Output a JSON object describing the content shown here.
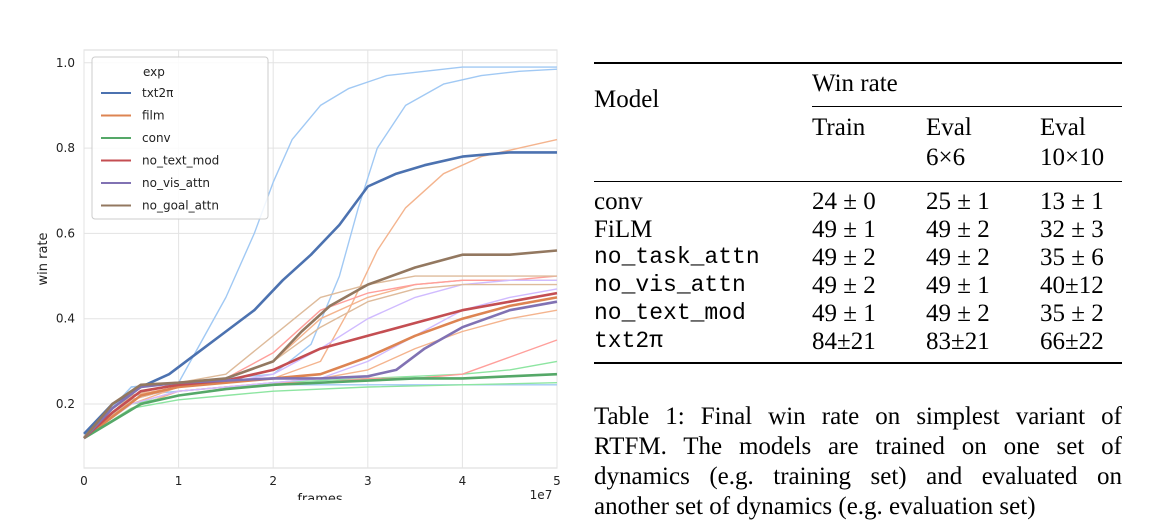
{
  "chart_data": {
    "type": "line",
    "xlabel": "frames",
    "x_scale_label": "1e7",
    "ylabel": "win rate",
    "xlim": [
      0,
      5
    ],
    "ylim": [
      0.05,
      1.03
    ],
    "x_ticks": [
      "0",
      "1",
      "2",
      "3",
      "4",
      "5"
    ],
    "y_ticks": [
      "0.2",
      "0.4",
      "0.6",
      "0.8",
      "1.0"
    ],
    "grid": true,
    "legend": {
      "placement": "top-left",
      "title": "exp",
      "entries": [
        {
          "name": "txt2π",
          "color": "#4c72b0"
        },
        {
          "name": "film",
          "color": "#dd8452"
        },
        {
          "name": "conv",
          "color": "#55a868"
        },
        {
          "name": "no_text_mod",
          "color": "#c44e52"
        },
        {
          "name": "no_vis_attn",
          "color": "#8172b3"
        },
        {
          "name": "no_goal_attn",
          "color": "#937860"
        }
      ]
    },
    "series": [
      {
        "name": "txt2π",
        "color": "#4c72b0",
        "x": [
          0,
          0.3,
          0.6,
          0.9,
          1.2,
          1.5,
          1.8,
          2.1,
          2.4,
          2.7,
          3.0,
          3.3,
          3.6,
          4.0,
          4.5,
          5.0
        ],
        "y": [
          0.13,
          0.2,
          0.24,
          0.27,
          0.32,
          0.37,
          0.42,
          0.49,
          0.55,
          0.62,
          0.71,
          0.74,
          0.76,
          0.78,
          0.79,
          0.79
        ]
      },
      {
        "name": "film",
        "color": "#dd8452",
        "x": [
          0,
          0.3,
          0.6,
          1.0,
          1.5,
          2.0,
          2.5,
          3.0,
          3.5,
          4.0,
          4.5,
          5.0
        ],
        "y": [
          0.12,
          0.17,
          0.22,
          0.24,
          0.25,
          0.26,
          0.27,
          0.31,
          0.36,
          0.4,
          0.43,
          0.45
        ]
      },
      {
        "name": "conv",
        "color": "#55a868",
        "x": [
          0,
          0.3,
          0.6,
          1.0,
          1.5,
          2.0,
          2.5,
          3.0,
          3.5,
          4.0,
          4.5,
          5.0
        ],
        "y": [
          0.12,
          0.16,
          0.2,
          0.22,
          0.235,
          0.245,
          0.25,
          0.255,
          0.26,
          0.26,
          0.265,
          0.27
        ]
      },
      {
        "name": "no_text_mod",
        "color": "#c44e52",
        "x": [
          0,
          0.3,
          0.6,
          1.0,
          1.5,
          2.0,
          2.5,
          3.0,
          3.5,
          4.0,
          4.5,
          5.0
        ],
        "y": [
          0.12,
          0.18,
          0.23,
          0.245,
          0.255,
          0.28,
          0.33,
          0.36,
          0.39,
          0.42,
          0.44,
          0.46
        ]
      },
      {
        "name": "no_vis_attn",
        "color": "#8172b3",
        "x": [
          0,
          0.3,
          0.6,
          1.0,
          1.5,
          2.0,
          2.5,
          3.0,
          3.3,
          3.6,
          4.0,
          4.5,
          5.0
        ],
        "y": [
          0.12,
          0.19,
          0.24,
          0.25,
          0.255,
          0.26,
          0.26,
          0.265,
          0.28,
          0.33,
          0.38,
          0.42,
          0.44
        ]
      },
      {
        "name": "no_goal_attn",
        "color": "#937860",
        "x": [
          0,
          0.3,
          0.6,
          1.0,
          1.5,
          2.0,
          2.3,
          2.6,
          3.0,
          3.5,
          4.0,
          4.5,
          5.0
        ],
        "y": [
          0.12,
          0.2,
          0.245,
          0.25,
          0.26,
          0.3,
          0.37,
          0.43,
          0.48,
          0.52,
          0.55,
          0.55,
          0.56
        ]
      }
    ],
    "faint_runs": [
      {
        "color": "#a1c9f4",
        "x": [
          0,
          0.5,
          1.0,
          1.2,
          1.5,
          1.8,
          2.0,
          2.2,
          2.5,
          2.8,
          3.2,
          3.6,
          4.0,
          4.5,
          5.0
        ],
        "y": [
          0.12,
          0.24,
          0.25,
          0.33,
          0.45,
          0.6,
          0.72,
          0.82,
          0.9,
          0.94,
          0.97,
          0.98,
          0.99,
          0.99,
          0.99
        ]
      },
      {
        "color": "#a1c9f4",
        "x": [
          0,
          0.5,
          1.0,
          1.5,
          2.0,
          2.4,
          2.7,
          2.9,
          3.1,
          3.4,
          3.8,
          4.2,
          4.6,
          5.0
        ],
        "y": [
          0.12,
          0.24,
          0.25,
          0.26,
          0.27,
          0.34,
          0.5,
          0.66,
          0.8,
          0.9,
          0.95,
          0.97,
          0.98,
          0.985
        ]
      },
      {
        "color": "#a1c9f4",
        "x": [
          0,
          0.5,
          1.0,
          1.5,
          2.0,
          3.0,
          4.0,
          5.0
        ],
        "y": [
          0.12,
          0.22,
          0.23,
          0.24,
          0.245,
          0.245,
          0.245,
          0.245
        ]
      },
      {
        "color": "#f4b48e",
        "x": [
          0,
          0.5,
          1.0,
          1.5,
          2.0,
          2.5,
          2.8,
          3.1,
          3.4,
          3.8,
          4.2,
          4.6,
          5.0
        ],
        "y": [
          0.12,
          0.22,
          0.24,
          0.25,
          0.26,
          0.3,
          0.42,
          0.56,
          0.66,
          0.74,
          0.78,
          0.8,
          0.82
        ]
      },
      {
        "color": "#f4b48e",
        "x": [
          0,
          0.5,
          1.0,
          1.5,
          2.0,
          2.5,
          3.0,
          3.5,
          4.0,
          4.5,
          5.0
        ],
        "y": [
          0.12,
          0.2,
          0.24,
          0.26,
          0.3,
          0.4,
          0.45,
          0.48,
          0.49,
          0.49,
          0.49
        ]
      },
      {
        "color": "#f4b48e",
        "x": [
          0,
          0.5,
          1.0,
          1.5,
          2.0,
          2.5,
          3.0,
          3.5,
          4.0,
          4.5,
          5.0
        ],
        "y": [
          0.12,
          0.19,
          0.23,
          0.24,
          0.25,
          0.26,
          0.28,
          0.33,
          0.37,
          0.4,
          0.42
        ]
      },
      {
        "color": "#8de5a1",
        "x": [
          0,
          0.5,
          1.0,
          1.5,
          2.0,
          3.0,
          4.0,
          4.5,
          5.0
        ],
        "y": [
          0.12,
          0.2,
          0.22,
          0.235,
          0.25,
          0.26,
          0.27,
          0.28,
          0.3
        ]
      },
      {
        "color": "#8de5a1",
        "x": [
          0,
          0.5,
          1.0,
          1.5,
          2.0,
          3.0,
          4.0,
          5.0
        ],
        "y": [
          0.12,
          0.19,
          0.21,
          0.22,
          0.23,
          0.24,
          0.245,
          0.25
        ]
      },
      {
        "color": "#ff9f9b",
        "x": [
          0,
          0.5,
          1.0,
          1.5,
          2.0,
          2.5,
          3.0,
          3.5,
          4.0,
          4.5,
          5.0
        ],
        "y": [
          0.12,
          0.21,
          0.24,
          0.26,
          0.32,
          0.42,
          0.46,
          0.48,
          0.49,
          0.49,
          0.5
        ]
      },
      {
        "color": "#ff9f9b",
        "x": [
          0,
          0.5,
          1.0,
          1.5,
          2.0,
          2.5,
          3.0,
          3.5,
          4.0,
          4.5,
          5.0
        ],
        "y": [
          0.12,
          0.2,
          0.23,
          0.24,
          0.25,
          0.25,
          0.26,
          0.26,
          0.27,
          0.31,
          0.35
        ]
      },
      {
        "color": "#d0bbff",
        "x": [
          0,
          0.5,
          1.0,
          1.5,
          2.0,
          2.5,
          3.0,
          3.5,
          4.0,
          4.5,
          5.0
        ],
        "y": [
          0.12,
          0.21,
          0.24,
          0.25,
          0.27,
          0.33,
          0.4,
          0.45,
          0.48,
          0.49,
          0.49
        ]
      },
      {
        "color": "#d0bbff",
        "x": [
          0,
          0.5,
          1.0,
          1.5,
          2.0,
          2.5,
          3.0,
          3.5,
          4.0,
          4.5,
          5.0
        ],
        "y": [
          0.12,
          0.2,
          0.23,
          0.24,
          0.25,
          0.26,
          0.3,
          0.36,
          0.42,
          0.45,
          0.47
        ]
      },
      {
        "color": "#debb9b",
        "x": [
          0,
          0.5,
          1.0,
          1.5,
          2.0,
          2.5,
          3.0,
          3.5,
          4.0,
          4.5,
          5.0
        ],
        "y": [
          0.12,
          0.22,
          0.25,
          0.27,
          0.36,
          0.45,
          0.48,
          0.5,
          0.5,
          0.5,
          0.5
        ]
      },
      {
        "color": "#debb9b",
        "x": [
          0,
          0.5,
          1.0,
          1.5,
          2.0,
          2.5,
          3.0,
          3.5,
          4.0,
          4.5,
          5.0
        ],
        "y": [
          0.12,
          0.21,
          0.24,
          0.26,
          0.3,
          0.38,
          0.44,
          0.47,
          0.48,
          0.48,
          0.48
        ]
      }
    ]
  },
  "table": {
    "col_model": "Model",
    "group_header": "Win rate",
    "sub_headers": [
      {
        "line1": "Train",
        "line2": ""
      },
      {
        "line1": "Eval",
        "line2": "6×6"
      },
      {
        "line1": "Eval",
        "line2": "10×10"
      }
    ],
    "rows": [
      {
        "model": "conv",
        "mono": false,
        "cells": [
          "24 ± 0",
          "25 ± 1",
          "13 ± 1"
        ]
      },
      {
        "model": "FiLM",
        "mono": false,
        "cells": [
          "49 ± 1",
          "49 ± 2",
          "32 ± 3"
        ]
      },
      {
        "model": "no_task_attn",
        "mono": true,
        "cells": [
          "49 ± 2",
          "49 ± 2",
          "35 ± 6"
        ]
      },
      {
        "model": "no_vis_attn",
        "mono": true,
        "cells": [
          "49 ± 2",
          "49 ± 1",
          "40±12"
        ]
      },
      {
        "model": "no_text_mod",
        "mono": true,
        "cells": [
          "49 ± 1",
          "49 ± 2",
          "35 ± 2"
        ]
      },
      {
        "model": "txt2π",
        "mono": true,
        "cells": [
          "84±21",
          "83±21",
          "66±22"
        ]
      }
    ]
  },
  "caption": {
    "label": "Table 1:",
    "text": "Final win rate on simplest variant of RTFM. The models are trained on one set of dynamics (e.g. training set) and evaluated on another set of dynamics (e.g. evaluation set)"
  }
}
